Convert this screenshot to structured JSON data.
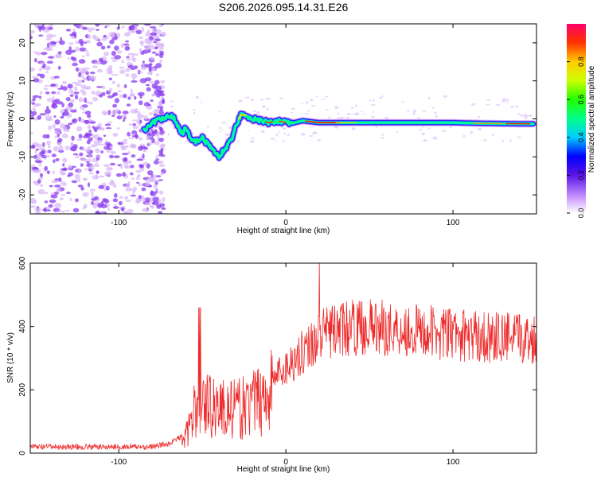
{
  "title": "S206.2026.095.14.31.E26",
  "colors": {
    "snr_line": "#ee2a2a",
    "cloud_purple": "#8a3cf0",
    "cloud_light": "#d9b8f8"
  },
  "chart_data": [
    {
      "type": "heatmap",
      "name": "spectrogram",
      "xlabel": "Height of straight line (km)",
      "ylabel": "Frequency (Hz)",
      "xlim": [
        -153,
        150
      ],
      "ylim": [
        -25,
        25
      ],
      "xticks": [
        -100,
        0,
        100
      ],
      "yticks": [
        -20,
        -10,
        0,
        10,
        20
      ],
      "ridge": {
        "x": [
          -85,
          -80,
          -75,
          -70,
          -67,
          -62,
          -60,
          -57,
          -54,
          -50,
          -46,
          -42,
          -40,
          -37,
          -33,
          -30,
          -27,
          -24,
          -20,
          -15,
          -10,
          -5,
          0,
          5,
          10,
          20,
          40,
          60,
          80,
          100,
          120,
          140,
          148
        ],
        "y": [
          -3,
          -1,
          0,
          1,
          0,
          -4,
          -2,
          -5,
          -6,
          -5,
          -7,
          -9,
          -10,
          -8,
          -6,
          -2,
          1,
          1,
          0,
          -0.5,
          -1,
          -0.5,
          -1,
          -1,
          -0.5,
          -1,
          -1,
          -1,
          -1,
          -1,
          -1.2,
          -1.3,
          -1.3
        ]
      },
      "colorbar": {
        "label": "Normalized spectral amplitude",
        "ticks": [
          "0.0",
          "0.2",
          "0.4",
          "0.6",
          "0.8"
        ]
      }
    },
    {
      "type": "line",
      "name": "snr",
      "xlabel": "Height of straight line (km)",
      "ylabel": "SNR (10 * v/v)",
      "xlim": [
        -153,
        150
      ],
      "ylim": [
        0,
        600
      ],
      "xticks": [
        -100,
        0,
        100
      ],
      "yticks": [
        0,
        200,
        400,
        600
      ],
      "envelope": {
        "x": [
          -153,
          -80,
          -70,
          -60,
          -55,
          -50,
          -40,
          -30,
          -20,
          -10,
          0,
          10,
          20,
          30,
          50,
          70,
          90,
          110,
          130,
          150
        ],
        "y": [
          20,
          20,
          30,
          60,
          150,
          190,
          170,
          160,
          180,
          230,
          270,
          320,
          370,
          390,
          400,
          390,
          380,
          370,
          365,
          360
        ]
      }
    }
  ]
}
